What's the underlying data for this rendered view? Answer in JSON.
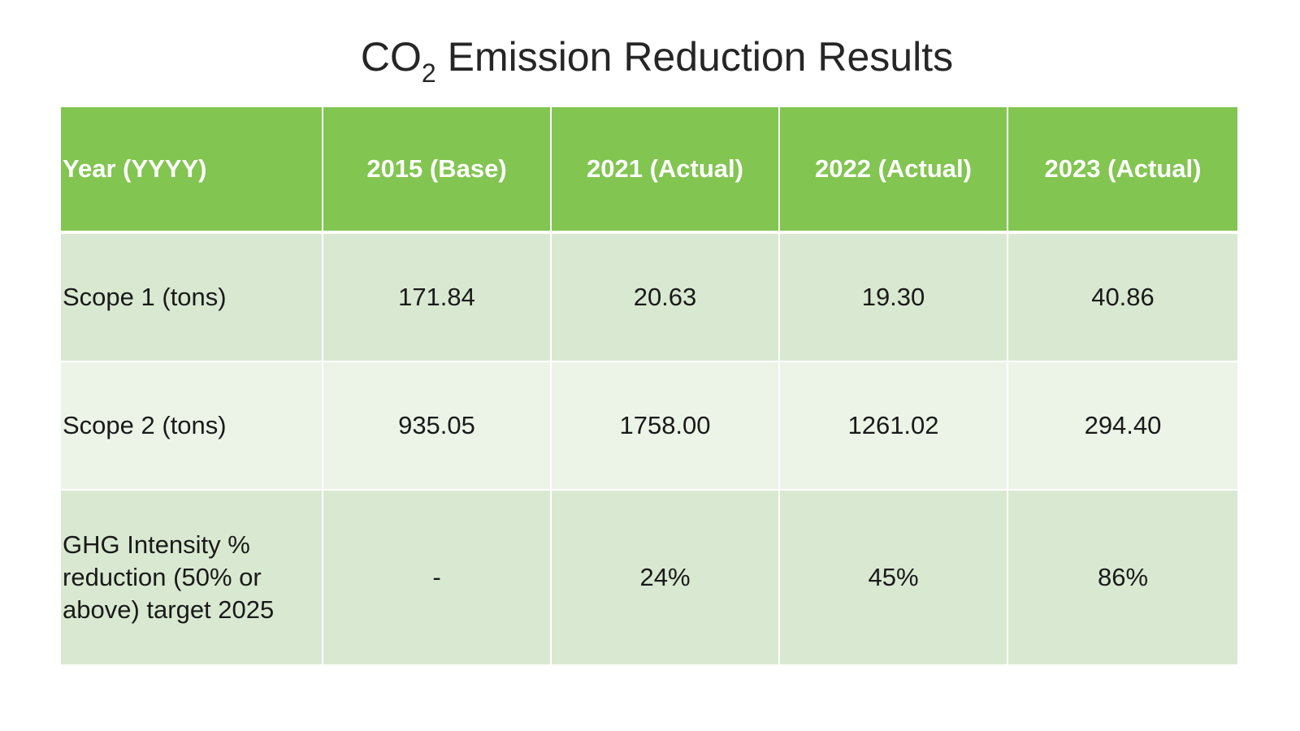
{
  "title": {
    "prefix": "CO",
    "subscript": "2",
    "suffix": " Emission Reduction Results"
  },
  "table": {
    "headers": [
      "Year (YYYY)",
      "2015 (Base)",
      "2021 (Actual)",
      "2022  (Actual)",
      "2023  (Actual)"
    ],
    "rows": [
      {
        "label": "Scope 1  (tons)",
        "values": [
          "171.84",
          "20.63",
          "19.30",
          "40.86"
        ]
      },
      {
        "label": "Scope 2  (tons)",
        "values": [
          "935.05",
          "1758.00",
          "1261.02",
          "294.40"
        ]
      },
      {
        "label": "GHG Intensity %\nreduction (50% or\nabove) target 2025",
        "values": [
          "-",
          "24%",
          "45%",
          "86%"
        ]
      }
    ]
  },
  "colors": {
    "header_green": "#82c551",
    "row_dark": "#d9e9d1",
    "row_light": "#ecf4e8"
  }
}
